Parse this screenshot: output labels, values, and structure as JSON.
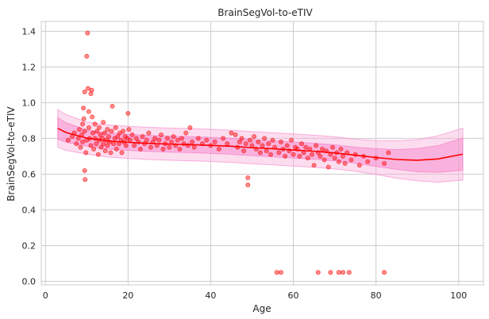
{
  "chart_data": {
    "type": "scatter",
    "title": "BrainSegVol-to-eTIV",
    "xlabel": "Age",
    "ylabel": "BrainSegVol-to-eTIV",
    "xlim": [
      -1,
      106
    ],
    "ylim": [
      -0.02,
      1.455
    ],
    "xticks": [
      "0",
      "20",
      "40",
      "60",
      "80",
      "100"
    ],
    "xtick_values": [
      0,
      20,
      40,
      60,
      80,
      100
    ],
    "yticks": [
      "0.0",
      "0.2",
      "0.4",
      "0.6",
      "0.8",
      "1.0",
      "1.2",
      "1.4"
    ],
    "ytick_values": [
      0.0,
      0.2,
      0.4,
      0.6,
      0.8,
      1.0,
      1.2,
      1.4
    ],
    "grid": true,
    "colors": {
      "points": "#ff0000",
      "trend": "#ff0000",
      "inner_band": "#f77fc8",
      "outer_band": "#f9b3dc"
    },
    "points": [
      [
        5.5,
        0.79
      ],
      [
        6.5,
        0.81
      ],
      [
        7.0,
        0.83
      ],
      [
        7.5,
        0.77
      ],
      [
        8.0,
        0.8
      ],
      [
        8.2,
        0.85
      ],
      [
        8.5,
        0.75
      ],
      [
        8.8,
        0.82
      ],
      [
        9.0,
        0.78
      ],
      [
        9.0,
        0.88
      ],
      [
        9.2,
        0.97
      ],
      [
        9.3,
        0.91
      ],
      [
        9.5,
        1.06
      ],
      [
        9.5,
        0.84
      ],
      [
        9.5,
        0.62
      ],
      [
        9.6,
        0.57
      ],
      [
        9.8,
        0.72
      ],
      [
        10.0,
        1.26
      ],
      [
        10.0,
        0.79
      ],
      [
        10.2,
        1.39
      ],
      [
        10.3,
        1.08
      ],
      [
        10.5,
        0.95
      ],
      [
        10.5,
        0.86
      ],
      [
        10.7,
        0.8
      ],
      [
        11.0,
        1.05
      ],
      [
        11.0,
        0.76
      ],
      [
        11.2,
        1.07
      ],
      [
        11.3,
        0.92
      ],
      [
        11.5,
        0.83
      ],
      [
        11.7,
        0.74
      ],
      [
        12.0,
        0.88
      ],
      [
        12.0,
        0.8
      ],
      [
        12.3,
        0.77
      ],
      [
        12.5,
        0.84
      ],
      [
        12.8,
        0.71
      ],
      [
        13.0,
        0.86
      ],
      [
        13.0,
        0.79
      ],
      [
        13.3,
        0.82
      ],
      [
        13.5,
        0.75
      ],
      [
        13.8,
        0.8
      ],
      [
        14.0,
        0.89
      ],
      [
        14.0,
        0.77
      ],
      [
        14.3,
        0.83
      ],
      [
        14.5,
        0.73
      ],
      [
        14.8,
        0.79
      ],
      [
        15.0,
        0.85
      ],
      [
        15.0,
        0.76
      ],
      [
        15.3,
        0.81
      ],
      [
        15.5,
        0.78
      ],
      [
        15.8,
        0.72
      ],
      [
        16.0,
        0.84
      ],
      [
        16.2,
        0.98
      ],
      [
        16.5,
        0.77
      ],
      [
        16.8,
        0.8
      ],
      [
        17.0,
        0.86
      ],
      [
        17.2,
        0.74
      ],
      [
        17.5,
        0.81
      ],
      [
        17.8,
        0.77
      ],
      [
        18.0,
        0.83
      ],
      [
        18.3,
        0.79
      ],
      [
        18.5,
        0.72
      ],
      [
        18.8,
        0.84
      ],
      [
        19.0,
        0.78
      ],
      [
        19.3,
        0.81
      ],
      [
        19.5,
        0.76
      ],
      [
        19.8,
        0.8
      ],
      [
        20.0,
        0.94
      ],
      [
        20.2,
        0.85
      ],
      [
        20.5,
        0.79
      ],
      [
        21.0,
        0.82
      ],
      [
        21.5,
        0.76
      ],
      [
        22.0,
        0.8
      ],
      [
        22.5,
        0.78
      ],
      [
        23.0,
        0.74
      ],
      [
        23.5,
        0.81
      ],
      [
        24.0,
        0.77
      ],
      [
        24.5,
        0.79
      ],
      [
        25.0,
        0.83
      ],
      [
        25.5,
        0.75
      ],
      [
        26.0,
        0.78
      ],
      [
        26.5,
        0.8
      ],
      [
        27.0,
        0.76
      ],
      [
        27.5,
        0.79
      ],
      [
        28.0,
        0.82
      ],
      [
        28.5,
        0.74
      ],
      [
        29.0,
        0.77
      ],
      [
        29.5,
        0.8
      ],
      [
        30.0,
        0.75
      ],
      [
        30.5,
        0.78
      ],
      [
        31.0,
        0.81
      ],
      [
        31.5,
        0.76
      ],
      [
        32.0,
        0.79
      ],
      [
        32.5,
        0.74
      ],
      [
        33.0,
        0.8
      ],
      [
        33.5,
        0.77
      ],
      [
        34.0,
        0.83
      ],
      [
        34.5,
        0.76
      ],
      [
        35.0,
        0.86
      ],
      [
        35.5,
        0.78
      ],
      [
        36.0,
        0.75
      ],
      [
        37.0,
        0.8
      ],
      [
        38.0,
        0.77
      ],
      [
        39.0,
        0.79
      ],
      [
        40.0,
        0.76
      ],
      [
        41.0,
        0.78
      ],
      [
        42.0,
        0.74
      ],
      [
        43.0,
        0.8
      ],
      [
        44.0,
        0.77
      ],
      [
        45.0,
        0.83
      ],
      [
        46.0,
        0.82
      ],
      [
        46.5,
        0.75
      ],
      [
        47.0,
        0.78
      ],
      [
        47.5,
        0.8
      ],
      [
        48.0,
        0.73
      ],
      [
        48.5,
        0.77
      ],
      [
        49.0,
        0.58
      ],
      [
        49.0,
        0.54
      ],
      [
        49.5,
        0.79
      ],
      [
        50.0,
        0.76
      ],
      [
        50.5,
        0.81
      ],
      [
        51.0,
        0.74
      ],
      [
        51.5,
        0.78
      ],
      [
        52.0,
        0.72
      ],
      [
        52.5,
        0.76
      ],
      [
        53.0,
        0.8
      ],
      [
        53.5,
        0.73
      ],
      [
        54.0,
        0.77
      ],
      [
        54.5,
        0.71
      ],
      [
        55.0,
        0.79
      ],
      [
        55.5,
        0.75
      ],
      [
        56.0,
        0.05
      ],
      [
        56.5,
        0.72
      ],
      [
        57.0,
        0.05
      ],
      [
        57.0,
        0.78
      ],
      [
        57.5,
        0.74
      ],
      [
        58.0,
        0.7
      ],
      [
        58.5,
        0.76
      ],
      [
        59.0,
        0.73
      ],
      [
        59.5,
        0.79
      ],
      [
        60.0,
        0.71
      ],
      [
        60.5,
        0.75
      ],
      [
        61.0,
        0.74
      ],
      [
        61.5,
        0.7
      ],
      [
        62.0,
        0.77
      ],
      [
        62.5,
        0.72
      ],
      [
        63.0,
        0.75
      ],
      [
        63.5,
        0.69
      ],
      [
        64.0,
        0.74
      ],
      [
        64.5,
        0.71
      ],
      [
        65.0,
        0.65
      ],
      [
        65.5,
        0.76
      ],
      [
        66.0,
        0.05
      ],
      [
        66.0,
        0.72
      ],
      [
        66.5,
        0.7
      ],
      [
        67.0,
        0.74
      ],
      [
        67.5,
        0.68
      ],
      [
        68.0,
        0.73
      ],
      [
        68.5,
        0.64
      ],
      [
        69.0,
        0.05
      ],
      [
        69.0,
        0.71
      ],
      [
        69.5,
        0.75
      ],
      [
        70.0,
        0.69
      ],
      [
        70.5,
        0.72
      ],
      [
        71.0,
        0.05
      ],
      [
        71.0,
        0.67
      ],
      [
        71.5,
        0.74
      ],
      [
        72.0,
        0.05
      ],
      [
        72.0,
        0.7
      ],
      [
        72.5,
        0.66
      ],
      [
        73.0,
        0.72
      ],
      [
        73.5,
        0.05
      ],
      [
        74.0,
        0.68
      ],
      [
        75.0,
        0.71
      ],
      [
        76.0,
        0.65
      ],
      [
        77.0,
        0.7
      ],
      [
        78.0,
        0.67
      ],
      [
        80.0,
        0.69
      ],
      [
        82.0,
        0.05
      ],
      [
        82.0,
        0.66
      ],
      [
        83.0,
        0.72
      ]
    ],
    "trend": {
      "x": [
        3,
        5,
        10,
        15,
        20,
        25,
        30,
        35,
        40,
        45,
        50,
        55,
        60,
        65,
        70,
        75,
        80,
        85,
        90,
        95,
        101
      ],
      "y": [
        0.856,
        0.833,
        0.802,
        0.786,
        0.778,
        0.772,
        0.768,
        0.765,
        0.761,
        0.756,
        0.748,
        0.742,
        0.735,
        0.728,
        0.719,
        0.706,
        0.693,
        0.682,
        0.678,
        0.685,
        0.712
      ]
    },
    "band_inner_half_width": [
      0.06,
      0.055,
      0.045,
      0.045,
      0.045,
      0.045,
      0.045,
      0.045,
      0.045,
      0.045,
      0.045,
      0.045,
      0.045,
      0.045,
      0.045,
      0.045,
      0.05,
      0.055,
      0.065,
      0.075,
      0.09
    ],
    "band_outer_half_width": [
      0.105,
      0.1,
      0.09,
      0.09,
      0.09,
      0.09,
      0.09,
      0.09,
      0.09,
      0.09,
      0.09,
      0.09,
      0.09,
      0.09,
      0.09,
      0.09,
      0.095,
      0.105,
      0.115,
      0.13,
      0.145
    ]
  }
}
